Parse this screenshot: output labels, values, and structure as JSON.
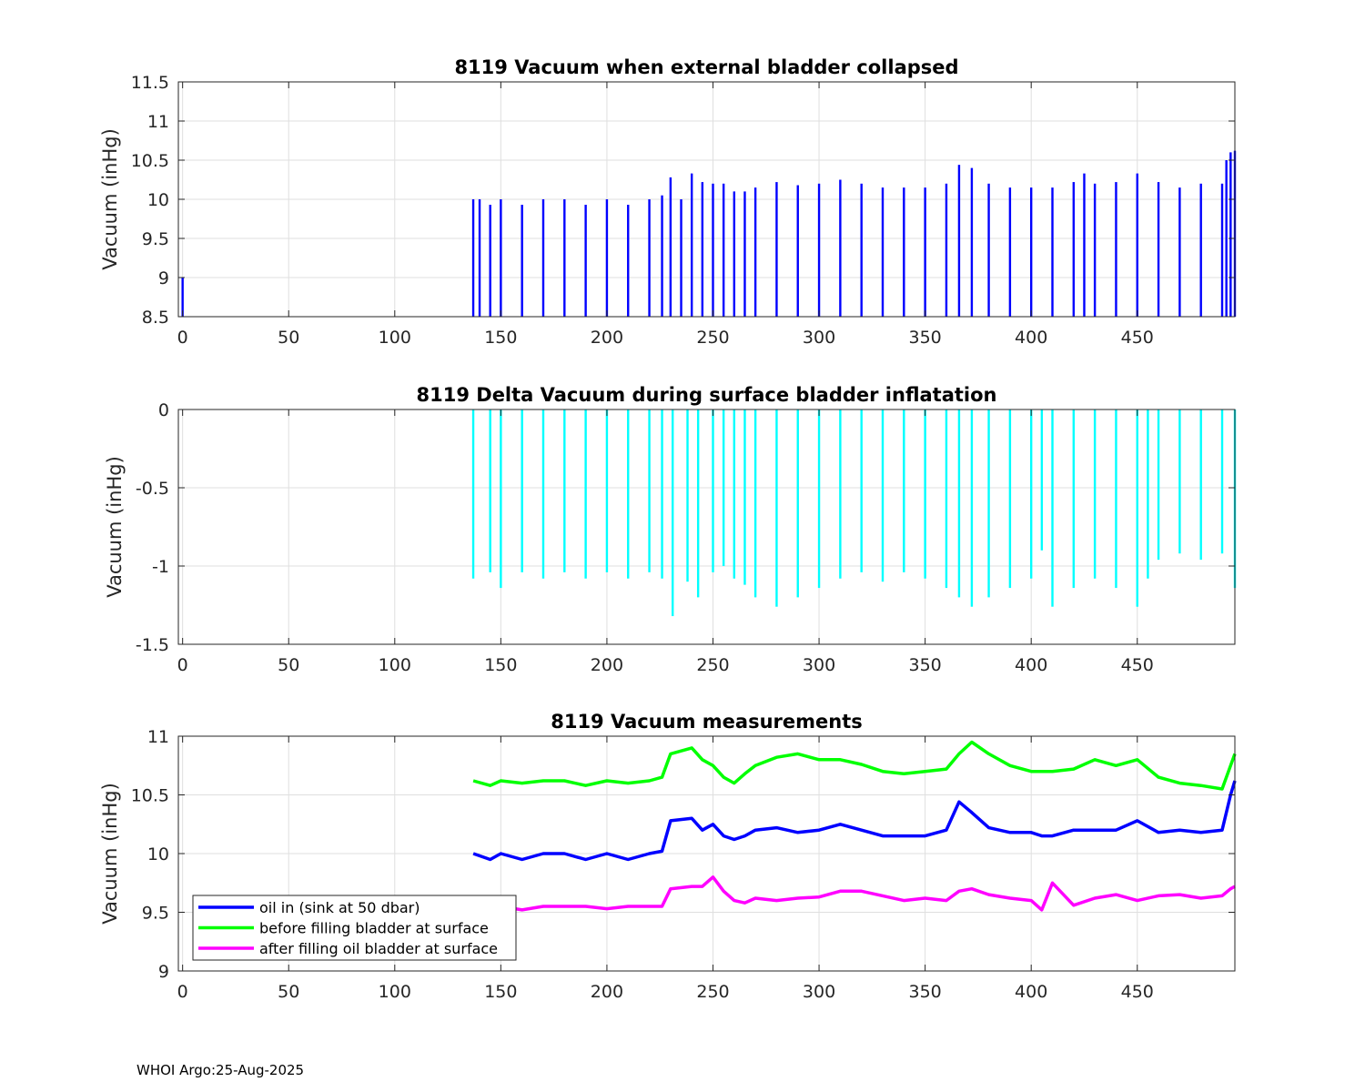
{
  "footer": "WHOI Argo:25-Aug-2025",
  "chart_data": [
    {
      "type": "bar",
      "title": "8119 Vacuum when external bladder collapsed",
      "xlabel": "",
      "ylabel": "Vacuum (inHg)",
      "xlim": [
        -2,
        496
      ],
      "ylim": [
        8.5,
        11.5
      ],
      "xticks": [
        "0",
        "50",
        "100",
        "150",
        "200",
        "250",
        "300",
        "350",
        "400",
        "450"
      ],
      "yticks": [
        "8.5",
        "9",
        "9.5",
        "10",
        "10.5",
        "11",
        "11.5"
      ],
      "grid": true,
      "bar_color": "#0000ff",
      "x": [
        0,
        137,
        140,
        145,
        150,
        160,
        170,
        180,
        190,
        200,
        210,
        220,
        226,
        230,
        235,
        240,
        245,
        250,
        255,
        260,
        265,
        270,
        280,
        290,
        300,
        310,
        320,
        330,
        340,
        350,
        360,
        366,
        372,
        380,
        390,
        400,
        410,
        420,
        425,
        430,
        440,
        450,
        460,
        470,
        480,
        490,
        492,
        494,
        496
      ],
      "values": [
        9.0,
        10.0,
        10.0,
        9.93,
        10.0,
        9.93,
        10.0,
        10.0,
        9.93,
        10.0,
        9.93,
        10.0,
        10.05,
        10.28,
        10.0,
        10.33,
        10.22,
        10.2,
        10.2,
        10.1,
        10.1,
        10.15,
        10.22,
        10.18,
        10.2,
        10.25,
        10.2,
        10.15,
        10.15,
        10.15,
        10.2,
        10.44,
        10.4,
        10.2,
        10.15,
        10.15,
        10.15,
        10.22,
        10.33,
        10.2,
        10.22,
        10.33,
        10.22,
        10.15,
        10.2,
        10.2,
        10.5,
        10.6,
        10.62
      ]
    },
    {
      "type": "bar",
      "title": "8119 Delta Vacuum during surface bladder inflatation",
      "xlabel": "",
      "ylabel": "Vacuum (inHg)",
      "xlim": [
        -2,
        496
      ],
      "ylim": [
        -1.5,
        0
      ],
      "xticks": [
        "0",
        "50",
        "100",
        "150",
        "200",
        "250",
        "300",
        "350",
        "400",
        "450"
      ],
      "yticks": [
        "-1.5",
        "-1",
        "-0.5",
        "0"
      ],
      "grid": true,
      "bar_color": "#00ffff",
      "x": [
        137,
        145,
        150,
        160,
        170,
        180,
        190,
        200,
        210,
        220,
        226,
        231,
        238,
        243,
        250,
        255,
        260,
        265,
        270,
        280,
        290,
        300,
        310,
        320,
        330,
        340,
        350,
        360,
        366,
        372,
        380,
        390,
        400,
        405,
        410,
        420,
        430,
        440,
        450,
        455,
        460,
        470,
        480,
        490,
        496
      ],
      "values": [
        -1.08,
        -1.04,
        -1.14,
        -1.04,
        -1.08,
        -1.04,
        -1.08,
        -1.04,
        -1.08,
        -1.04,
        -1.08,
        -1.32,
        -1.1,
        -1.2,
        -1.04,
        -1.0,
        -1.08,
        -1.12,
        -1.2,
        -1.26,
        -1.2,
        -1.14,
        -1.08,
        -1.04,
        -1.1,
        -1.04,
        -1.08,
        -1.14,
        -1.2,
        -1.26,
        -1.2,
        -1.14,
        -1.08,
        -0.9,
        -1.26,
        -1.14,
        -1.08,
        -1.14,
        -1.26,
        -1.08,
        -0.96,
        -0.92,
        -0.96,
        -0.92,
        -1.14
      ]
    },
    {
      "type": "line",
      "title": "8119 Vacuum measurements",
      "xlabel": "",
      "ylabel": "Vacuum (inHg)",
      "xlim": [
        -2,
        496
      ],
      "ylim": [
        9,
        11
      ],
      "xticks": [
        "0",
        "50",
        "100",
        "150",
        "200",
        "250",
        "300",
        "350",
        "400",
        "450"
      ],
      "yticks": [
        "9",
        "9.5",
        "10",
        "10.5",
        "11"
      ],
      "grid": true,
      "legend_position": "bottom-left",
      "x": [
        137,
        145,
        150,
        160,
        170,
        180,
        190,
        200,
        210,
        220,
        226,
        230,
        240,
        245,
        250,
        255,
        260,
        265,
        270,
        280,
        290,
        300,
        310,
        320,
        330,
        340,
        350,
        360,
        366,
        372,
        380,
        390,
        400,
        405,
        410,
        420,
        430,
        440,
        450,
        460,
        470,
        480,
        490,
        494,
        496
      ],
      "series": [
        {
          "name": "oil in (sink at 50 dbar)",
          "color": "#0000ff",
          "values": [
            10.0,
            9.95,
            10.0,
            9.95,
            10.0,
            10.0,
            9.95,
            10.0,
            9.95,
            10.0,
            10.02,
            10.28,
            10.3,
            10.2,
            10.25,
            10.15,
            10.12,
            10.15,
            10.2,
            10.22,
            10.18,
            10.2,
            10.25,
            10.2,
            10.15,
            10.15,
            10.15,
            10.2,
            10.44,
            10.35,
            10.22,
            10.18,
            10.18,
            10.15,
            10.15,
            10.2,
            10.2,
            10.2,
            10.28,
            10.18,
            10.2,
            10.18,
            10.2,
            10.5,
            10.62
          ]
        },
        {
          "name": "before filling bladder at surface",
          "color": "#00ff00",
          "values": [
            10.62,
            10.58,
            10.62,
            10.6,
            10.62,
            10.62,
            10.58,
            10.62,
            10.6,
            10.62,
            10.65,
            10.85,
            10.9,
            10.8,
            10.75,
            10.65,
            10.6,
            10.68,
            10.75,
            10.82,
            10.85,
            10.8,
            10.8,
            10.76,
            10.7,
            10.68,
            10.7,
            10.72,
            10.85,
            10.95,
            10.85,
            10.75,
            10.7,
            10.7,
            10.7,
            10.72,
            10.8,
            10.75,
            10.8,
            10.65,
            10.6,
            10.58,
            10.55,
            10.75,
            10.85
          ]
        },
        {
          "name": "after filling oil bladder at surface",
          "color": "#ff00ff",
          "values": [
            9.52,
            9.55,
            9.55,
            9.52,
            9.55,
            9.55,
            9.55,
            9.53,
            9.55,
            9.55,
            9.55,
            9.7,
            9.72,
            9.72,
            9.8,
            9.68,
            9.6,
            9.58,
            9.62,
            9.6,
            9.62,
            9.63,
            9.68,
            9.68,
            9.64,
            9.6,
            9.62,
            9.6,
            9.68,
            9.7,
            9.65,
            9.62,
            9.6,
            9.52,
            9.75,
            9.56,
            9.62,
            9.65,
            9.6,
            9.64,
            9.65,
            9.62,
            9.64,
            9.7,
            9.72
          ]
        }
      ]
    }
  ]
}
